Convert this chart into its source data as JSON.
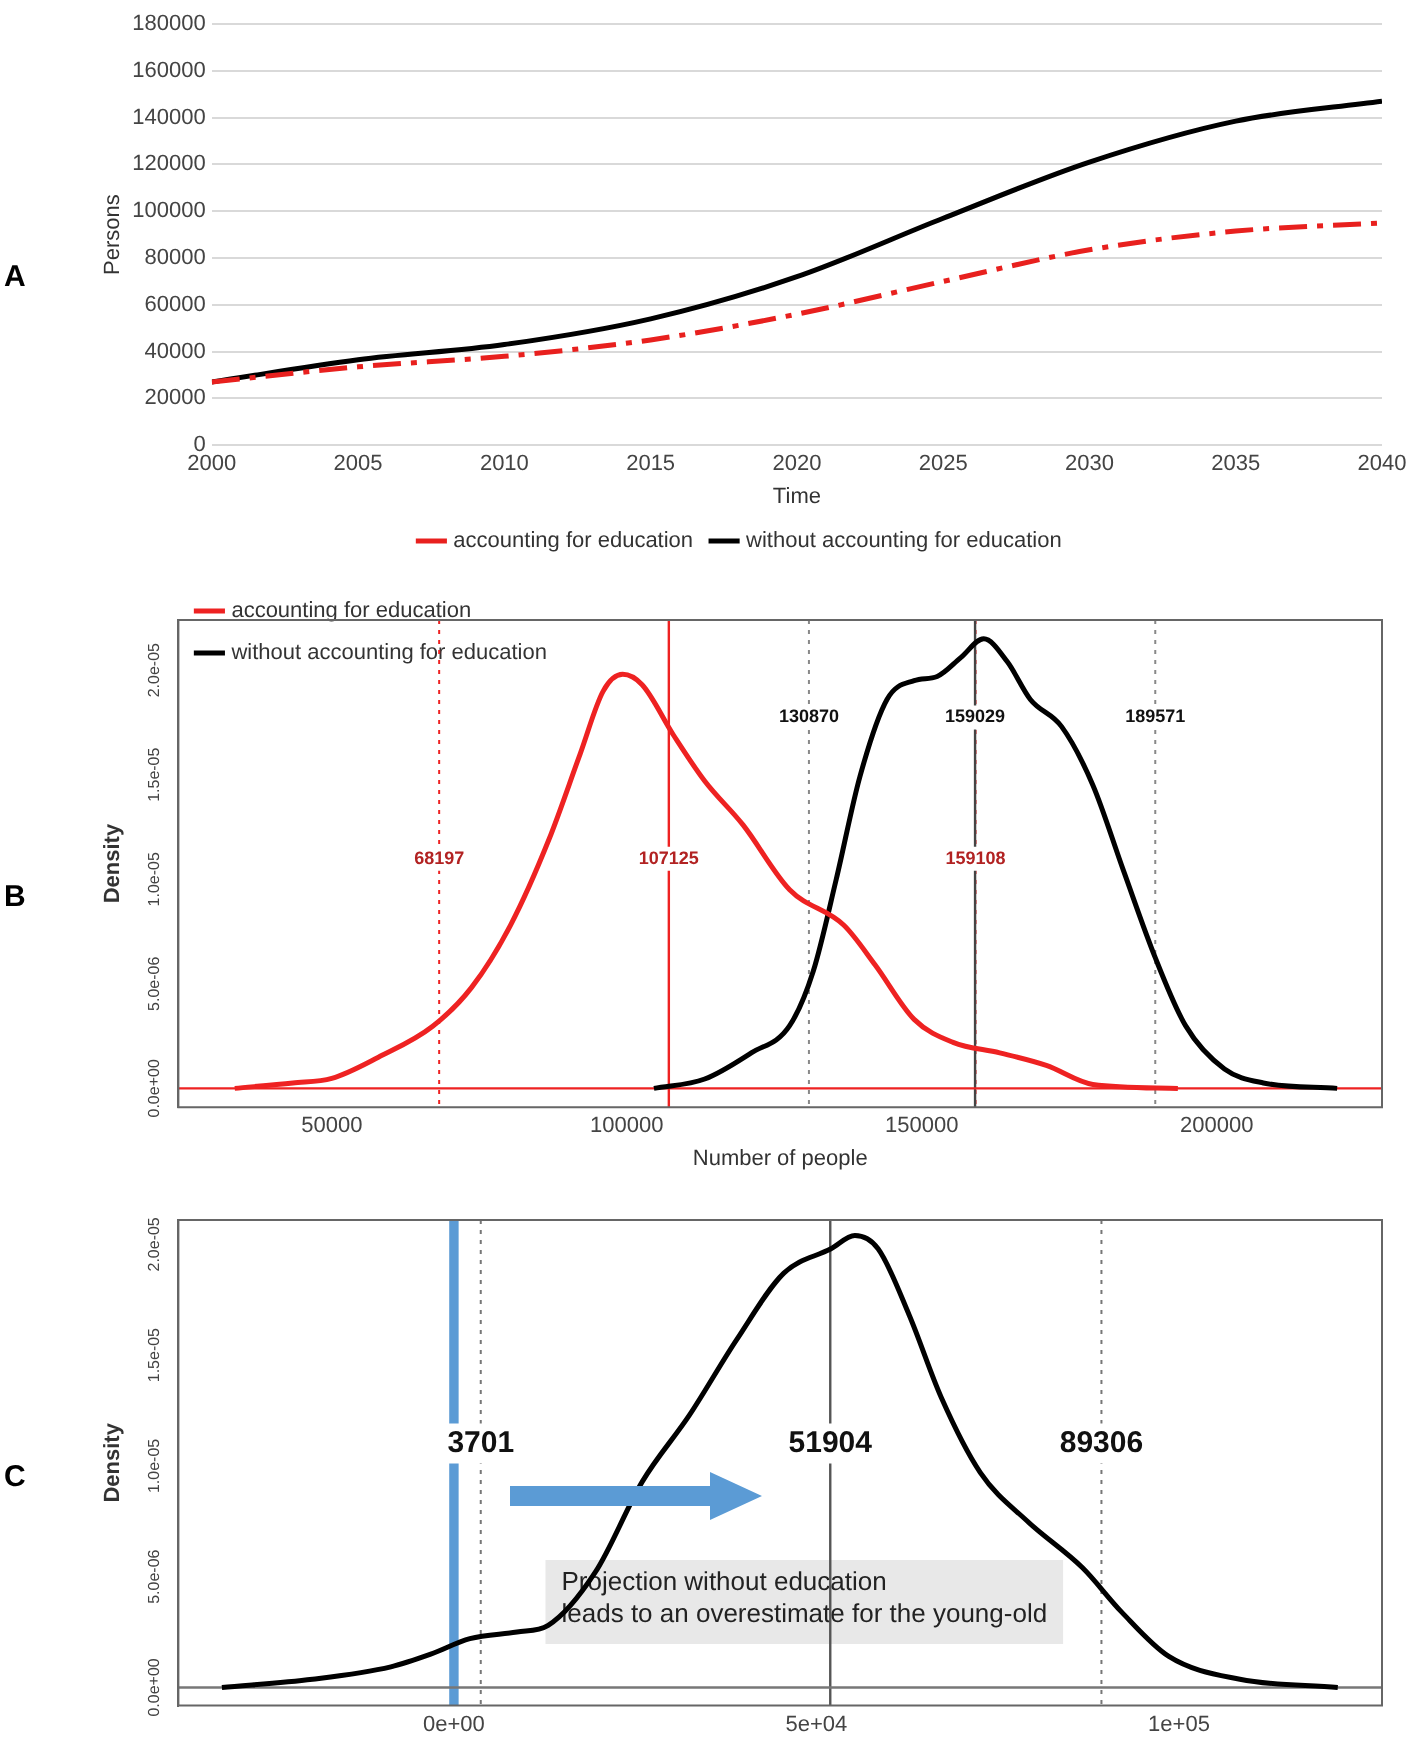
{
  "chart_data": [
    {
      "type": "line",
      "title": "A",
      "xlabel": "Time",
      "ylabel": "Persons",
      "x": [
        2000,
        2005,
        2010,
        2015,
        2020,
        2025,
        2030,
        2035,
        2040
      ],
      "xlim": [
        2000,
        2040
      ],
      "xticks": [
        2000,
        2005,
        2010,
        2015,
        2020,
        2025,
        2030,
        2035,
        2040
      ],
      "ylim": [
        0,
        180000
      ],
      "yticks": [
        0,
        20000,
        40000,
        60000,
        80000,
        100000,
        120000,
        140000,
        160000,
        180000
      ],
      "grid": "y",
      "legend": "bottom",
      "marker": "none",
      "series": [
        {
          "name": "accounting for education",
          "color": "#e8201e",
          "line_style": "dashed",
          "values": [
            27000,
            33500,
            38000,
            45000,
            56000,
            70000,
            83500,
            91500,
            95000
          ]
        },
        {
          "name": "without accounting for education",
          "color": "#000000",
          "line_style": "solid",
          "values": [
            27000,
            36500,
            43000,
            54000,
            72000,
            97000,
            121000,
            138500,
            147000
          ]
        }
      ]
    },
    {
      "type": "line",
      "title": "B",
      "xlabel": "Number of people",
      "ylabel": "Density",
      "xlim": [
        24000,
        228000
      ],
      "xticks": [
        50000,
        100000,
        150000,
        200000
      ],
      "ylim": [
        -9e-07,
        2.24e-05
      ],
      "yticks": [
        {
          "value": 0,
          "label": "0.0e+00"
        },
        {
          "value": 5e-06,
          "label": "5.0e-06"
        },
        {
          "value": 1e-05,
          "label": "1.0e-05"
        },
        {
          "value": 1.5e-05,
          "label": "1.5e-05"
        },
        {
          "value": 2e-05,
          "label": "2.0e-05"
        }
      ],
      "legend": "top left",
      "marker": "none",
      "series": [
        {
          "name": "accounting for education",
          "color": "#ee2222",
          "line_style": "solid",
          "x": [
            33550,
            43400,
            50000,
            57900,
            67100,
            73700,
            80300,
            86800,
            92100,
            96000,
            99300,
            102600,
            107900,
            113200,
            119700,
            127600,
            136800,
            142100,
            148700,
            155300,
            163200,
            171100,
            179000,
            193400
          ],
          "values": [
            0,
            2.6e-07,
            4.8e-07,
            1.49e-06,
            2.97e-06,
            4.83e-06,
            7.81e-06,
            1.19e-05,
            1.6e-05,
            1.9e-05,
            1.98e-05,
            1.93e-05,
            1.69e-05,
            1.47e-05,
            1.26e-05,
            9.5e-06,
            7.8e-06,
            5.9e-06,
            3.3e-06,
            2.2e-06,
            1.7e-06,
            1.1e-06,
            1.9e-07,
            0
          ]
        },
        {
          "name": "without accounting for education",
          "color": "#000000",
          "line_style": "solid",
          "x": [
            104600,
            113200,
            121100,
            127600,
            131600,
            135500,
            139500,
            144100,
            148700,
            152600,
            156600,
            160500,
            164500,
            168400,
            173700,
            179000,
            184200,
            189500,
            194700,
            201300,
            207900,
            220400
          ],
          "values": [
            0,
            4.5e-07,
            1.7e-06,
            3e-06,
            5.6e-06,
            1e-05,
            1.49e-05,
            1.86e-05,
            1.95e-05,
            1.97e-05,
            2.06e-05,
            2.15e-05,
            2.04e-05,
            1.86e-05,
            1.73e-05,
            1.45e-05,
            1.04e-05,
            6.3e-06,
            3e-06,
            9.3e-07,
            2.6e-07,
            0
          ]
        }
      ],
      "ref_lines": [
        {
          "axis": "x",
          "value": 68197,
          "label": "68197",
          "color": "#ee2222",
          "line_style": "dotted"
        },
        {
          "axis": "x",
          "value": 107125,
          "label": "107125",
          "color": "#ee2222",
          "line_style": "solid"
        },
        {
          "axis": "x",
          "value": 159108,
          "label": "159108",
          "color": "#ee2222",
          "line_style": "dotted"
        },
        {
          "axis": "x",
          "value": 130870,
          "label": "130870",
          "color": "#888888",
          "line_style": "dotted"
        },
        {
          "axis": "x",
          "value": 159029,
          "label": "159029",
          "color": "#444444",
          "line_style": "solid"
        },
        {
          "axis": "x",
          "value": 189571,
          "label": "189571",
          "color": "#888888",
          "line_style": "dotted"
        },
        {
          "axis": "y",
          "value": 0,
          "color": "#ee2222",
          "line_style": "solid"
        }
      ]
    },
    {
      "type": "line",
      "title": "C",
      "ylabel": "Density",
      "xlim": [
        -38000,
        128000
      ],
      "xticks": [
        {
          "value": 0,
          "label": "0e+00"
        },
        {
          "value": 50000,
          "label": "5e+04"
        },
        {
          "value": 100000,
          "label": "1e+05"
        }
      ],
      "ylim": [
        -8.2e-07,
        2.11e-05
      ],
      "yticks": [
        {
          "value": 0,
          "label": "0.0e+00"
        },
        {
          "value": 5e-06,
          "label": "5.0e-06"
        },
        {
          "value": 1e-05,
          "label": "1.0e-05"
        },
        {
          "value": 1.5e-05,
          "label": "1.5e-05"
        },
        {
          "value": 2e-05,
          "label": "2.0e-05"
        }
      ],
      "marker": "none",
      "series": [
        {
          "color": "#000000",
          "line_style": "solid",
          "x": [
            -32000,
            -19500,
            -8700,
            -3200,
            2200,
            8700,
            13000,
            19500,
            26000,
            32500,
            39000,
            45500,
            52000,
            55300,
            58500,
            62800,
            67200,
            72600,
            79100,
            86700,
            92100,
            98600,
            108400,
            121900
          ],
          "values": [
            0,
            3.7e-07,
            9.3e-07,
            1.5e-06,
            2.2e-06,
            2.5e-06,
            2.8e-06,
            5.2e-06,
            9.3e-06,
            1.23e-05,
            1.57e-05,
            1.87e-05,
            1.98e-05,
            2.04e-05,
            1.98e-05,
            1.68e-05,
            1.31e-05,
            9.7e-06,
            7.5e-06,
            5.4e-06,
            3.4e-06,
            1.4e-06,
            3.7e-07,
            0
          ]
        }
      ],
      "bands": [
        {
          "axis": "x",
          "from": -650,
          "to": 650,
          "color": "#5b9bd5"
        }
      ],
      "ref_lines": [
        {
          "axis": "x",
          "value": 3701,
          "label": "3701",
          "color": "#777777",
          "line_style": "dotted"
        },
        {
          "axis": "x",
          "value": 51904,
          "label": "51904",
          "color": "#555555",
          "line_style": "solid"
        },
        {
          "axis": "x",
          "value": 89306,
          "label": "89306",
          "color": "#777777",
          "line_style": "dotted"
        },
        {
          "axis": "y",
          "value": 0,
          "color": "#777777",
          "line_style": "solid"
        }
      ],
      "annotations": [
        "Projection without education\nleads to an overestimate for the young-old"
      ]
    }
  ]
}
